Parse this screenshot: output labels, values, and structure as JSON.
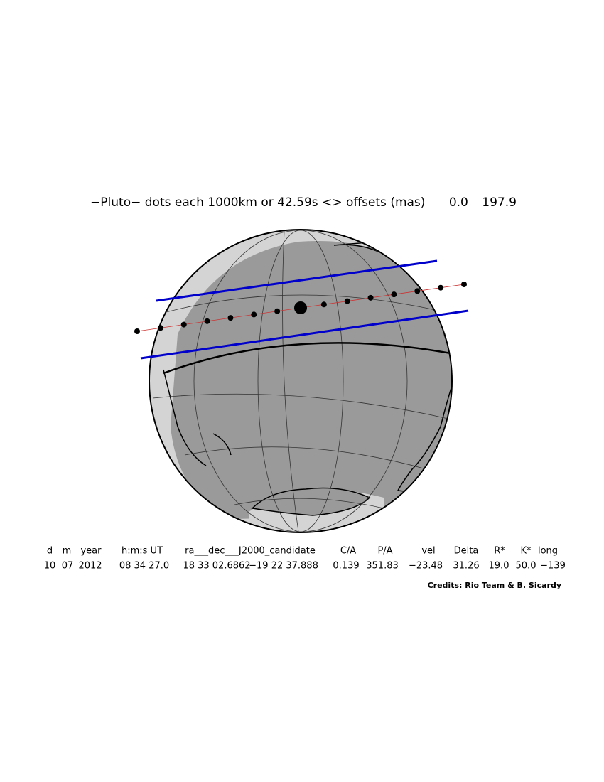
{
  "header": {
    "title": "−Pluto− dots each 1000km or 42.59s <> offsets (mas)",
    "offset_x": "0.0",
    "offset_y": "197.9"
  },
  "table": {
    "columns": [
      "d",
      "m",
      "year",
      "h:m:s UT",
      "ra___dec___J2000_candidate",
      "C/A",
      "P/A",
      "vel",
      "Delta",
      "R*",
      "K*",
      "long"
    ],
    "values": [
      "10",
      "07",
      "2012",
      "08 34 27.0",
      "18 33 02.6862",
      "−19 22 37.888",
      "0.139",
      "351.83",
      "−23.48",
      "31.26",
      "19.0",
      "50.0",
      "−139"
    ]
  },
  "credits": "Credits: Rio Team & B. Sicardy"
}
